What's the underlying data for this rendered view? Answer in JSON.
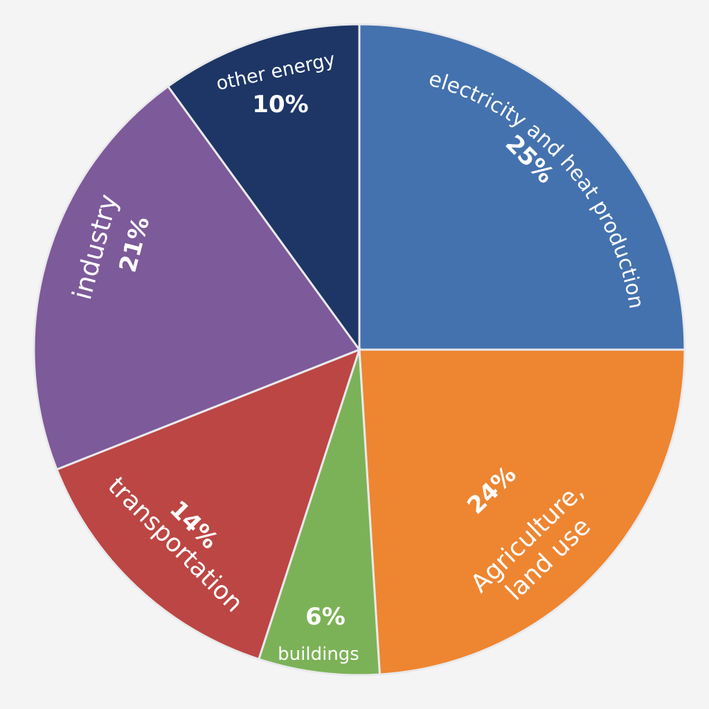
{
  "chart_data": {
    "type": "pie",
    "slices": [
      {
        "label": "electricity and heat production",
        "value": 25,
        "value_label": "25%",
        "color": "#4472ae"
      },
      {
        "label": "Agriculture,\nland use",
        "value": 24,
        "value_label": "24%",
        "color": "#ee8531"
      },
      {
        "label": "buildings",
        "value": 6,
        "value_label": "6%",
        "color": "#7cb257"
      },
      {
        "label": "transportation",
        "value": 14,
        "value_label": "14%",
        "color": "#bc4643"
      },
      {
        "label": "industry",
        "value": 21,
        "value_label": "21%",
        "color": "#7d5a9a"
      },
      {
        "label": "other energy",
        "value": 10,
        "value_label": "10%",
        "color": "#1d3666"
      }
    ],
    "start_angle": "12 o'clock",
    "direction": "clockwise",
    "legend": "none"
  }
}
